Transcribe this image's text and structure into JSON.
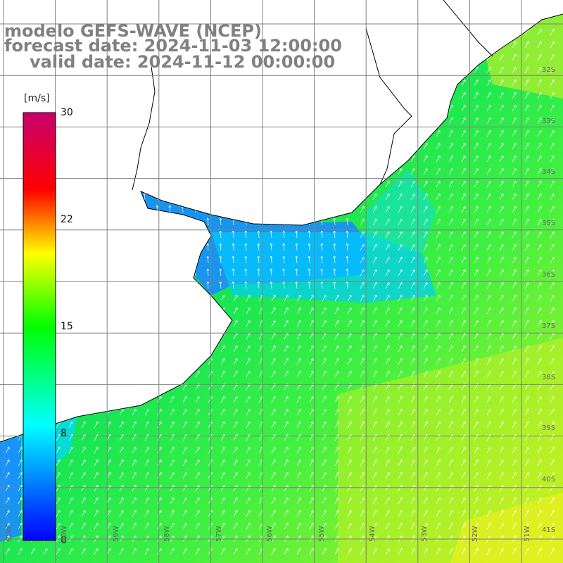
{
  "title": {
    "line1": "modelo GEFS-WAVE (NCEP)",
    "line2": "forecast date: 2024-11-03 12:00:00",
    "line3": "valid date: 2024-11-12 00:00:00"
  },
  "colorbar": {
    "unit": "[m/s]",
    "ticks": [
      "30",
      "22",
      "15",
      "8",
      "0"
    ],
    "stops": [
      "#0000ff",
      "#00ffff",
      "#00ff00",
      "#ffff00",
      "#ff0000",
      "#c8006e"
    ]
  },
  "map": {
    "lat_labels": [
      "32S",
      "33S",
      "34S",
      "35S",
      "36S",
      "37S",
      "38S",
      "39S",
      "40S",
      "41S"
    ],
    "lon_labels": [
      "61W",
      "60W",
      "59W",
      "58W",
      "57W",
      "56W",
      "55W",
      "54W",
      "53W",
      "52W",
      "51W"
    ],
    "land_color": "#ffffff",
    "coast_color": "#000000",
    "grid_color": "#808080",
    "arrow_color": "#ffffff"
  }
}
